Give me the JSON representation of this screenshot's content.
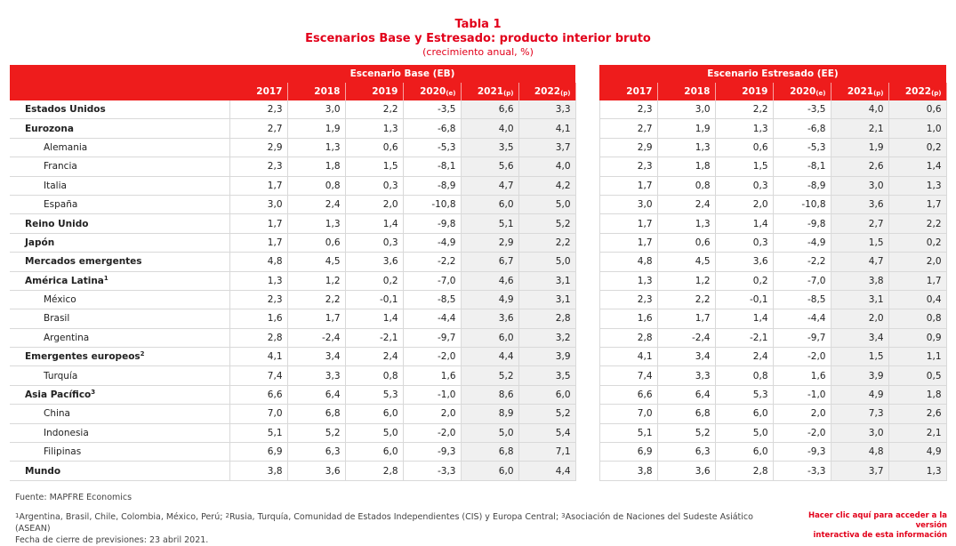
{
  "title": "Tabla 1",
  "subtitle": "Escenarios Base y Estresado: producto interior bruto",
  "units": "(crecimiento anual, %)",
  "scenarios": {
    "base": "Escenario Base (EB)",
    "stress": "Escenario Estresado (EE)"
  },
  "years": [
    {
      "y": "2017",
      "s": ""
    },
    {
      "y": "2018",
      "s": ""
    },
    {
      "y": "2019",
      "s": ""
    },
    {
      "y": "2020",
      "s": "(e)"
    },
    {
      "y": "2021",
      "s": "(p)"
    },
    {
      "y": "2022",
      "s": "(p)"
    }
  ],
  "rows": [
    {
      "label": "Estados Unidos",
      "sup": "",
      "level": "main",
      "base": [
        "2,3",
        "3,0",
        "2,2",
        "-3,5",
        "6,6",
        "3,3"
      ],
      "stress": [
        "2,3",
        "3,0",
        "2,2",
        "-3,5",
        "4,0",
        "0,6"
      ]
    },
    {
      "label": "Eurozona",
      "sup": "",
      "level": "main",
      "base": [
        "2,7",
        "1,9",
        "1,3",
        "-6,8",
        "4,0",
        "4,1"
      ],
      "stress": [
        "2,7",
        "1,9",
        "1,3",
        "-6,8",
        "2,1",
        "1,0"
      ]
    },
    {
      "label": "Alemania",
      "sup": "",
      "level": "sub",
      "base": [
        "2,9",
        "1,3",
        "0,6",
        "-5,3",
        "3,5",
        "3,7"
      ],
      "stress": [
        "2,9",
        "1,3",
        "0,6",
        "-5,3",
        "1,9",
        "0,2"
      ]
    },
    {
      "label": "Francia",
      "sup": "",
      "level": "sub",
      "base": [
        "2,3",
        "1,8",
        "1,5",
        "-8,1",
        "5,6",
        "4,0"
      ],
      "stress": [
        "2,3",
        "1,8",
        "1,5",
        "-8,1",
        "2,6",
        "1,4"
      ]
    },
    {
      "label": "Italia",
      "sup": "",
      "level": "sub",
      "base": [
        "1,7",
        "0,8",
        "0,3",
        "-8,9",
        "4,7",
        "4,2"
      ],
      "stress": [
        "1,7",
        "0,8",
        "0,3",
        "-8,9",
        "3,0",
        "1,3"
      ]
    },
    {
      "label": "España",
      "sup": "",
      "level": "sub",
      "base": [
        "3,0",
        "2,4",
        "2,0",
        "-10,8",
        "6,0",
        "5,0"
      ],
      "stress": [
        "3,0",
        "2,4",
        "2,0",
        "-10,8",
        "3,6",
        "1,7"
      ]
    },
    {
      "label": "Reino Unido",
      "sup": "",
      "level": "main",
      "base": [
        "1,7",
        "1,3",
        "1,4",
        "-9,8",
        "5,1",
        "5,2"
      ],
      "stress": [
        "1,7",
        "1,3",
        "1,4",
        "-9,8",
        "2,7",
        "2,2"
      ]
    },
    {
      "label": "Japón",
      "sup": "",
      "level": "main",
      "base": [
        "1,7",
        "0,6",
        "0,3",
        "-4,9",
        "2,9",
        "2,2"
      ],
      "stress": [
        "1,7",
        "0,6",
        "0,3",
        "-4,9",
        "1,5",
        "0,2"
      ]
    },
    {
      "label": "Mercados emergentes",
      "sup": "",
      "level": "main",
      "base": [
        "4,8",
        "4,5",
        "3,6",
        "-2,2",
        "6,7",
        "5,0"
      ],
      "stress": [
        "4,8",
        "4,5",
        "3,6",
        "-2,2",
        "4,7",
        "2,0"
      ]
    },
    {
      "label": "América Latina",
      "sup": "1",
      "level": "main",
      "base": [
        "1,3",
        "1,2",
        "0,2",
        "-7,0",
        "4,6",
        "3,1"
      ],
      "stress": [
        "1,3",
        "1,2",
        "0,2",
        "-7,0",
        "3,8",
        "1,7"
      ]
    },
    {
      "label": "México",
      "sup": "",
      "level": "sub",
      "base": [
        "2,3",
        "2,2",
        "-0,1",
        "-8,5",
        "4,9",
        "3,1"
      ],
      "stress": [
        "2,3",
        "2,2",
        "-0,1",
        "-8,5",
        "3,1",
        "0,4"
      ]
    },
    {
      "label": "Brasil",
      "sup": "",
      "level": "sub",
      "base": [
        "1,6",
        "1,7",
        "1,4",
        "-4,4",
        "3,6",
        "2,8"
      ],
      "stress": [
        "1,6",
        "1,7",
        "1,4",
        "-4,4",
        "2,0",
        "0,8"
      ]
    },
    {
      "label": "Argentina",
      "sup": "",
      "level": "sub",
      "base": [
        "2,8",
        "-2,4",
        "-2,1",
        "-9,7",
        "6,0",
        "3,2"
      ],
      "stress": [
        "2,8",
        "-2,4",
        "-2,1",
        "-9,7",
        "3,4",
        "0,9"
      ]
    },
    {
      "label": "Emergentes europeos",
      "sup": "2",
      "level": "main",
      "base": [
        "4,1",
        "3,4",
        "2,4",
        "-2,0",
        "4,4",
        "3,9"
      ],
      "stress": [
        "4,1",
        "3,4",
        "2,4",
        "-2,0",
        "1,5",
        "1,1"
      ]
    },
    {
      "label": "Turquía",
      "sup": "",
      "level": "sub",
      "base": [
        "7,4",
        "3,3",
        "0,8",
        "1,6",
        "5,2",
        "3,5"
      ],
      "stress": [
        "7,4",
        "3,3",
        "0,8",
        "1,6",
        "3,9",
        "0,5"
      ]
    },
    {
      "label": "Asia Pacífico",
      "sup": "3",
      "level": "main",
      "base": [
        "6,6",
        "6,4",
        "5,3",
        "-1,0",
        "8,6",
        "6,0"
      ],
      "stress": [
        "6,6",
        "6,4",
        "5,3",
        "-1,0",
        "4,9",
        "1,8"
      ]
    },
    {
      "label": "China",
      "sup": "",
      "level": "sub",
      "base": [
        "7,0",
        "6,8",
        "6,0",
        "2,0",
        "8,9",
        "5,2"
      ],
      "stress": [
        "7,0",
        "6,8",
        "6,0",
        "2,0",
        "7,3",
        "2,6"
      ]
    },
    {
      "label": "Indonesia",
      "sup": "",
      "level": "sub",
      "base": [
        "5,1",
        "5,2",
        "5,0",
        "-2,0",
        "5,0",
        "5,4"
      ],
      "stress": [
        "5,1",
        "5,2",
        "5,0",
        "-2,0",
        "3,0",
        "2,1"
      ]
    },
    {
      "label": "Filipinas",
      "sup": "",
      "level": "sub",
      "base": [
        "6,9",
        "6,3",
        "6,0",
        "-9,3",
        "6,8",
        "7,1"
      ],
      "stress": [
        "6,9",
        "6,3",
        "6,0",
        "-9,3",
        "4,8",
        "4,9"
      ]
    },
    {
      "label": "Mundo",
      "sup": "",
      "level": "main",
      "base": [
        "3,8",
        "3,6",
        "2,8",
        "-3,3",
        "6,0",
        "4,4"
      ],
      "stress": [
        "3,8",
        "3,6",
        "2,8",
        "-3,3",
        "3,7",
        "1,3"
      ]
    }
  ],
  "footer": {
    "source": "Fuente: MAPFRE Economics",
    "notes": [
      {
        "sup": "1",
        "text": "Argentina, Brasil, Chile, Colombia, México, Perú; "
      },
      {
        "sup": "2",
        "text": "Rusia, Turquía, Comunidad de Estados Independientes (CIS) y Europa Central; "
      },
      {
        "sup": "3",
        "text": "Asociación de Naciones del Sudeste Asiático (ASEAN)"
      }
    ],
    "closing": "Fecha de cierre de previsiones: 23 abril 2021.",
    "link_line1": "Hacer clic aquí para acceder a la versión",
    "link_line2": "interactiva de esta información"
  }
}
